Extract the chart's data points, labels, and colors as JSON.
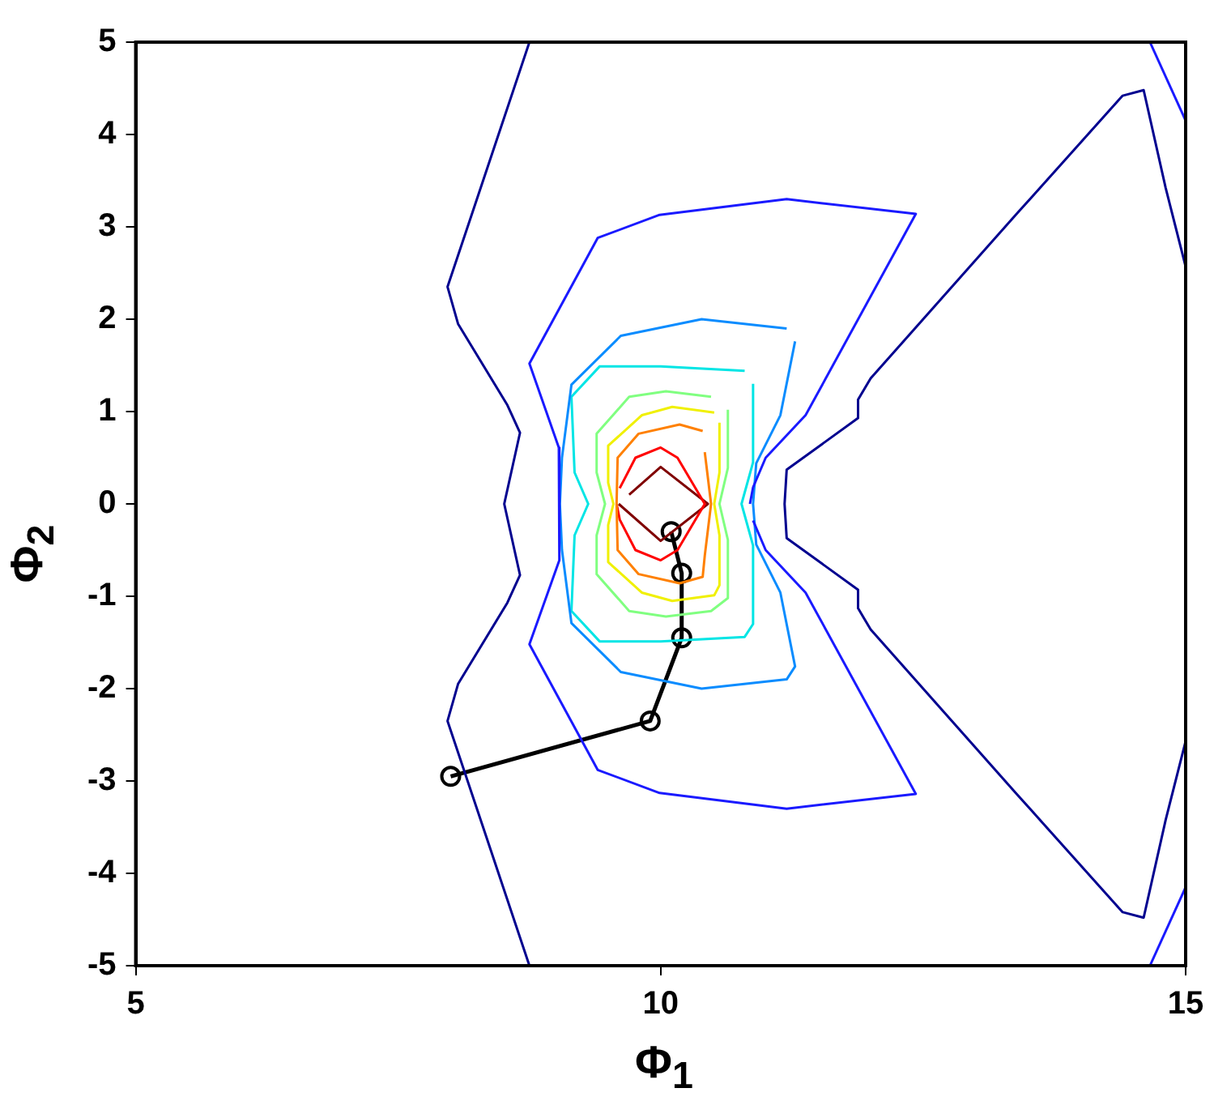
{
  "chart_data": {
    "type": "line",
    "xlabel": "Φ$_{1}$",
    "ylabel": "Φ$_{2}$",
    "xlim": [
      5,
      15
    ],
    "xticks": [
      5,
      10,
      15
    ],
    "ylim": [
      -5,
      5
    ],
    "yticks": [
      -5,
      -4,
      -3,
      -2,
      -1,
      0,
      1,
      2,
      3,
      4,
      5
    ],
    "series": [
      {
        "color": "#00008f",
        "marker": "none",
        "x": [
          8.75,
          7.97,
          8.07,
          8.54,
          8.66,
          8.51,
          8.66,
          8.54,
          8.07,
          7.97,
          8.75
        ],
        "values": [
          5,
          2.35,
          1.95,
          1.07,
          0.77,
          0,
          -0.77,
          -1.07,
          -1.95,
          -2.35,
          -5
        ]
      },
      {
        "color": "#00008f",
        "marker": "none",
        "x": [
          15,
          14.81,
          14.6,
          14.4,
          13.39,
          12.0,
          11.88,
          11.88,
          11.2,
          11.18,
          11.2,
          11.88,
          11.88,
          12.0,
          13.39,
          14.4,
          14.6,
          14.81,
          15
        ],
        "values": [
          2.57,
          3.42,
          4.48,
          4.42,
          3.14,
          1.36,
          1.13,
          0.93,
          0.37,
          0,
          -0.37,
          -0.93,
          -1.13,
          -1.36,
          -3.14,
          -4.42,
          -4.48,
          -3.42,
          -2.57
        ]
      },
      {
        "color": "#1a1aff",
        "marker": "none",
        "x": [
          10.85,
          10.88,
          11.0,
          11.38,
          12.43,
          11.2,
          9.99,
          9.4,
          8.75,
          9.03,
          9.04,
          9.03,
          8.75,
          9.4,
          9.99,
          11.2,
          12.43,
          11.38,
          11.0,
          10.88
        ],
        "values": [
          0,
          0.18,
          0.5,
          0.96,
          3.14,
          3.3,
          3.13,
          2.88,
          1.52,
          0.61,
          0,
          -0.61,
          -1.52,
          -2.88,
          -3.13,
          -3.3,
          -3.14,
          -0.96,
          -0.5,
          -0.18
        ]
      },
      {
        "color": "#1a1aff",
        "marker": "none",
        "x": [
          14.66,
          15
        ],
        "values": [
          5,
          4.15
        ]
      },
      {
        "color": "#1a1aff",
        "marker": "none",
        "x": [
          14.66,
          15
        ],
        "values": [
          -5,
          -4.15
        ]
      },
      {
        "color": "#0a8cff",
        "marker": "none",
        "x": [
          11.2,
          10.39,
          9.62,
          9.15,
          9.06,
          9.04,
          9.06,
          9.15,
          9.62,
          10.39,
          11.2,
          11.28,
          11.14,
          10.91,
          10.88,
          10.91,
          11.14,
          11.28
        ],
        "values": [
          1.9,
          2.0,
          1.82,
          1.29,
          0.5,
          0,
          -0.5,
          -1.29,
          -1.82,
          -2.0,
          -1.9,
          -1.76,
          -0.96,
          -0.44,
          0,
          0.44,
          0.96,
          1.76
        ]
      },
      {
        "color": "#00e5e5",
        "marker": "none",
        "x": [
          10.8,
          10.0,
          9.42,
          9.15,
          9.18,
          9.31,
          9.18,
          9.15,
          9.42,
          10.0,
          10.8,
          10.88,
          10.88,
          10.77,
          10.88,
          10.88
        ],
        "values": [
          1.44,
          1.49,
          1.49,
          1.16,
          0.34,
          0,
          -0.34,
          -1.16,
          -1.49,
          -1.49,
          -1.44,
          -1.3,
          -0.45,
          0,
          0.45,
          1.3
        ]
      },
      {
        "color": "#80ff80",
        "marker": "none",
        "x": [
          10.48,
          10.05,
          9.7,
          9.39,
          9.39,
          9.47,
          9.39,
          9.39,
          9.7,
          10.05,
          10.48,
          10.64,
          10.64,
          10.56,
          10.64,
          10.64
        ],
        "values": [
          1.16,
          1.22,
          1.16,
          0.76,
          0.34,
          0,
          -0.34,
          -0.76,
          -1.16,
          -1.22,
          -1.16,
          -1.02,
          -0.39,
          0,
          0.39,
          1.02
        ]
      },
      {
        "color": "#f0f000",
        "marker": "none",
        "x": [
          10.51,
          10.11,
          9.82,
          9.5,
          9.5,
          9.55,
          9.5,
          9.5,
          9.82,
          10.11,
          10.51,
          10.56,
          10.56,
          10.51,
          10.56,
          10.56
        ],
        "values": [
          0.99,
          1.05,
          0.96,
          0.63,
          0.23,
          0,
          -0.23,
          -0.63,
          -0.96,
          -1.05,
          -0.99,
          -0.88,
          -0.34,
          0,
          0.34,
          0.88
        ]
      },
      {
        "color": "#ff8000",
        "marker": "none",
        "x": [
          10.4,
          10.18,
          9.79,
          9.59,
          9.58,
          9.59,
          9.79,
          10.18,
          10.4,
          10.42,
          10.48,
          10.42
        ],
        "values": [
          0.79,
          0.86,
          0.76,
          0.5,
          0,
          -0.5,
          -0.76,
          -0.86,
          -0.79,
          -0.56,
          0,
          0.56
        ]
      },
      {
        "color": "#ff0000",
        "marker": "none",
        "x": [
          9.61,
          9.76,
          10.0,
          10.16,
          10.42,
          10.16,
          10.0,
          9.76,
          9.61,
          9.58
        ],
        "values": [
          0.17,
          0.5,
          0.61,
          0.5,
          0,
          -0.5,
          -0.61,
          -0.5,
          -0.17,
          0
        ]
      },
      {
        "color": "#800000",
        "marker": "none",
        "x": [
          9.7,
          10.0,
          10.45,
          10.0,
          9.6
        ],
        "values": [
          0.1,
          0.4,
          0,
          -0.4,
          0
        ]
      },
      {
        "color": "#000000",
        "marker": "circle",
        "x": [
          8.0,
          9.9,
          10.2,
          10.2,
          10.1
        ],
        "values": [
          -2.95,
          -2.35,
          -1.45,
          -0.75,
          -0.3
        ]
      }
    ]
  }
}
